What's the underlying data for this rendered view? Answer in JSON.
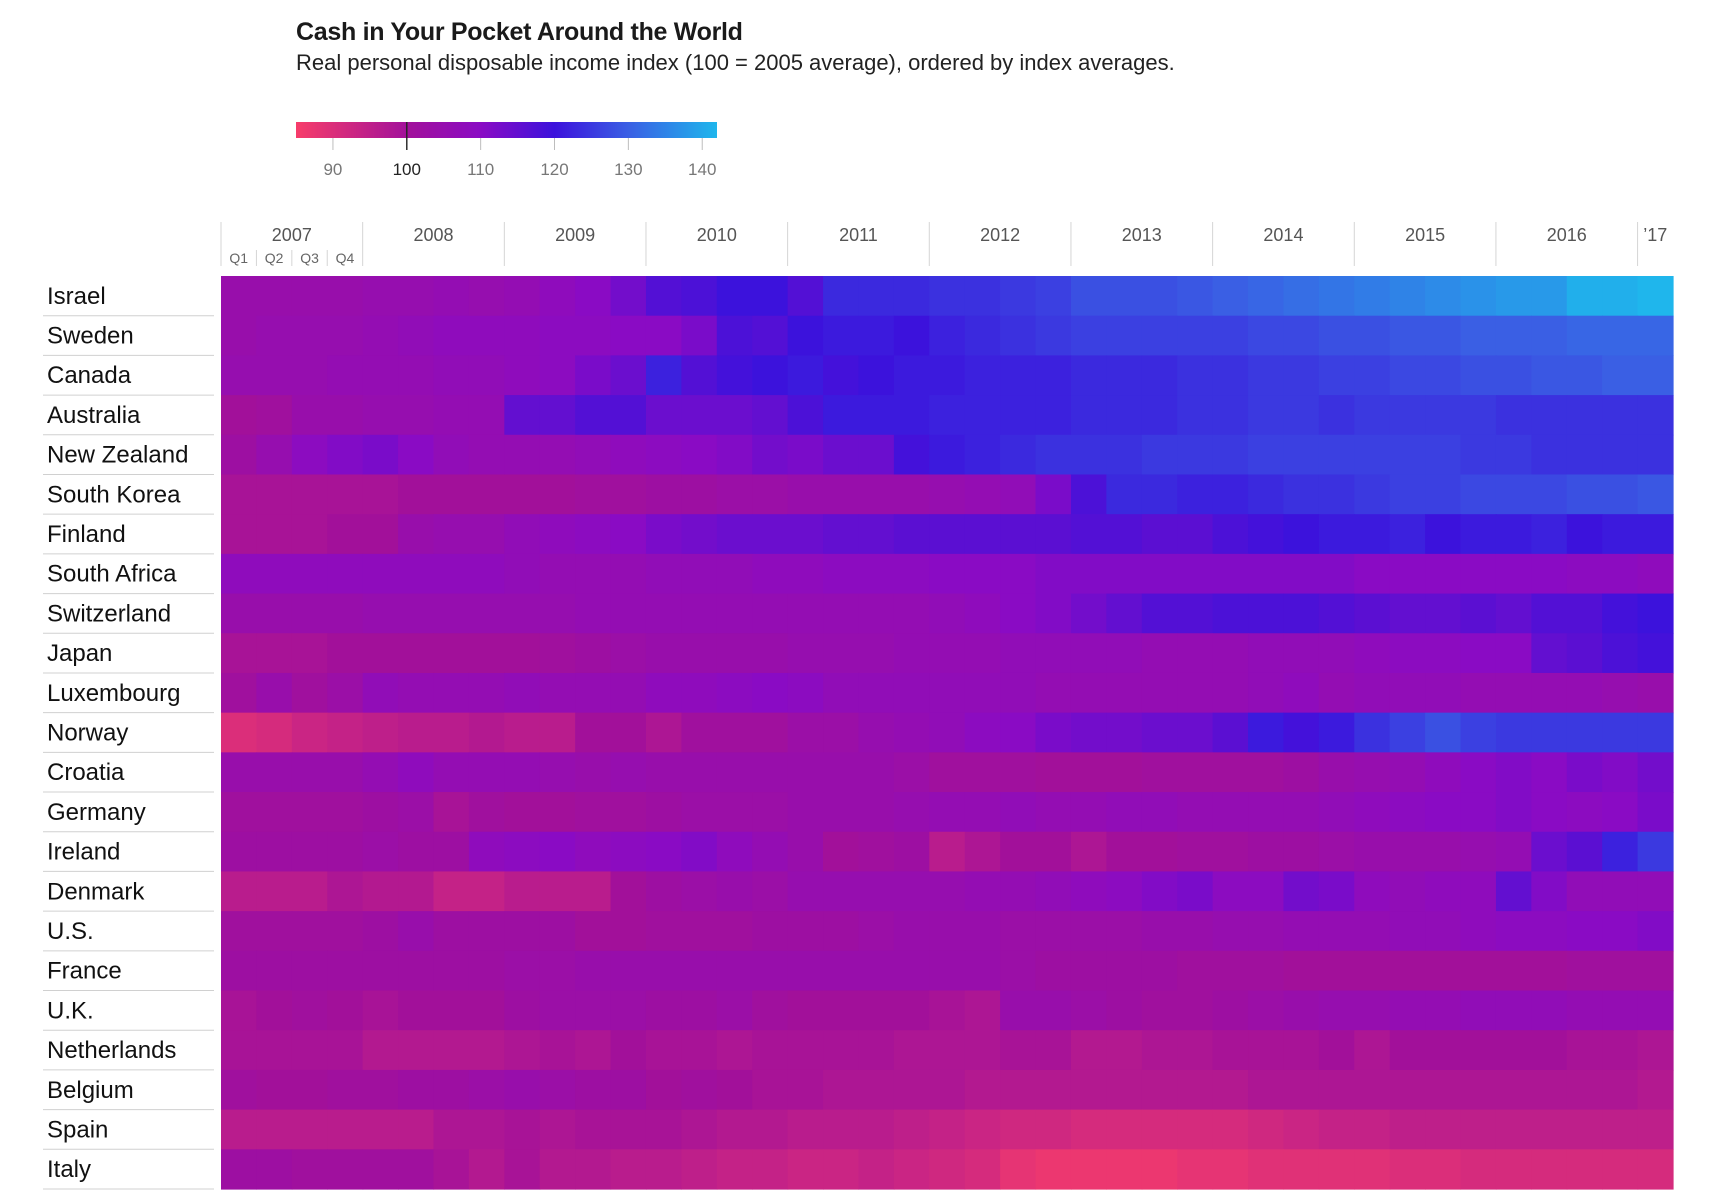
{
  "chart_data": {
    "type": "heatmap",
    "title": "Cash in Your Pocket Around the World",
    "subtitle": "Real personal disposable income index (100 = 2005 average), ordered by index averages.",
    "color_scale": {
      "domain": [
        85,
        100,
        110,
        120,
        130,
        142
      ],
      "colors": [
        "#f73d6a",
        "#a2109a",
        "#8a0bc4",
        "#3c12dc",
        "#3a5fe4",
        "#1fb6ec"
      ],
      "ticks": [
        90,
        100,
        110,
        120,
        130,
        140
      ],
      "ticks_labels": [
        "90",
        "100",
        "110",
        "120",
        "130",
        "140"
      ],
      "highlighted_tick": 100
    },
    "x_axis": {
      "years": [
        "2007",
        "2008",
        "2009",
        "2010",
        "2011",
        "2012",
        "2013",
        "2014",
        "2015",
        "2016",
        "’17"
      ],
      "quarters": [
        "Q1",
        "Q2",
        "Q3",
        "Q4"
      ],
      "num_columns": 41,
      "first_period": "2007 Q1",
      "last_period": "2017 Q1"
    },
    "rows": [
      {
        "name": "Israel",
        "values": [
          104,
          104,
          104,
          104,
          105,
          105,
          106,
          105,
          106,
          108,
          110,
          113,
          117,
          118,
          120,
          120,
          117,
          123,
          123,
          123,
          124,
          124,
          125,
          126,
          128,
          128,
          128,
          129,
          130,
          131,
          132,
          133,
          134,
          135,
          136,
          137,
          138,
          138,
          141,
          141,
          142
        ]
      },
      {
        "name": "Sweden",
        "values": [
          104,
          105,
          105,
          105,
          106,
          107,
          108,
          108,
          108,
          109,
          109,
          110,
          110,
          112,
          118,
          117,
          120,
          121,
          121,
          120,
          122,
          123,
          124,
          125,
          126,
          126,
          126,
          126,
          126,
          127,
          127,
          128,
          128,
          129,
          129,
          130,
          130,
          130,
          131,
          131,
          131
        ]
      },
      {
        "name": "Canada",
        "values": [
          105,
          105,
          105,
          106,
          106,
          106,
          107,
          107,
          108,
          109,
          112,
          114,
          122,
          117,
          119,
          120,
          121,
          119,
          120,
          121,
          121,
          122,
          122,
          122,
          123,
          123,
          123,
          124,
          124,
          125,
          125,
          126,
          126,
          127,
          127,
          128,
          128,
          129,
          129,
          130,
          130
        ]
      },
      {
        "name": "Australia",
        "values": [
          100,
          101,
          104,
          104,
          105,
          105,
          106,
          106,
          115,
          115,
          117,
          117,
          114,
          114,
          114,
          115,
          118,
          121,
          121,
          121,
          122,
          122,
          122,
          122,
          123,
          123,
          123,
          124,
          124,
          125,
          125,
          124,
          125,
          125,
          125,
          125,
          124,
          124,
          124,
          124,
          124
        ]
      },
      {
        "name": "New Zealand",
        "values": [
          102,
          105,
          109,
          111,
          112,
          110,
          107,
          106,
          106,
          106,
          107,
          108,
          109,
          110,
          111,
          113,
          112,
          114,
          114,
          119,
          121,
          122,
          123,
          124,
          124,
          124,
          125,
          125,
          125,
          126,
          126,
          126,
          126,
          126,
          126,
          125,
          125,
          124,
          124,
          124,
          124
        ]
      },
      {
        "name": "South Korea",
        "values": [
          99,
          99,
          99,
          99,
          99,
          100,
          100,
          100,
          100,
          100,
          101,
          101,
          102,
          102,
          103,
          103,
          104,
          104,
          104,
          104,
          105,
          106,
          107,
          112,
          118,
          123,
          123,
          122,
          122,
          123,
          124,
          124,
          125,
          126,
          126,
          127,
          127,
          127,
          128,
          128,
          129
        ]
      },
      {
        "name": "Finland",
        "values": [
          99,
          99,
          99,
          100,
          100,
          104,
          105,
          105,
          107,
          108,
          109,
          110,
          112,
          113,
          114,
          114,
          114,
          115,
          115,
          116,
          116,
          116,
          116,
          116,
          117,
          117,
          116,
          116,
          118,
          119,
          120,
          121,
          121,
          122,
          120,
          121,
          121,
          122,
          120,
          121,
          121
        ]
      },
      {
        "name": "South Africa",
        "values": [
          108,
          108,
          108,
          108,
          108,
          108,
          108,
          108,
          107,
          106,
          106,
          106,
          107,
          107,
          107,
          108,
          108,
          109,
          109,
          109,
          110,
          110,
          110,
          111,
          111,
          111,
          111,
          111,
          111,
          111,
          111,
          111,
          110,
          110,
          110,
          110,
          110,
          110,
          109,
          109,
          108
        ]
      },
      {
        "name": "Switzerland",
        "values": [
          104,
          104,
          104,
          104,
          105,
          105,
          105,
          105,
          105,
          105,
          106,
          106,
          106,
          106,
          106,
          106,
          106,
          106,
          106,
          106,
          107,
          108,
          110,
          111,
          113,
          115,
          117,
          117,
          118,
          118,
          118,
          117,
          116,
          115,
          115,
          116,
          115,
          117,
          117,
          119,
          120
        ]
      },
      {
        "name": "Japan",
        "values": [
          99,
          99,
          99,
          100,
          100,
          100,
          100,
          100,
          100,
          101,
          102,
          103,
          104,
          104,
          104,
          104,
          105,
          105,
          105,
          106,
          106,
          106,
          107,
          107,
          107,
          107,
          106,
          106,
          106,
          107,
          107,
          107,
          108,
          109,
          109,
          110,
          110,
          115,
          116,
          118,
          119
        ]
      },
      {
        "name": "Luxembourg",
        "values": [
          101,
          104,
          101,
          103,
          107,
          106,
          106,
          106,
          107,
          106,
          106,
          106,
          108,
          108,
          109,
          110,
          109,
          107,
          107,
          107,
          107,
          107,
          107,
          106,
          106,
          106,
          106,
          106,
          106,
          107,
          108,
          106,
          107,
          107,
          107,
          106,
          106,
          106,
          106,
          105,
          104
        ]
      },
      {
        "name": "Norway",
        "values": [
          90,
          91,
          93,
          94,
          95,
          96,
          96,
          97,
          96,
          96,
          100,
          100,
          98,
          101,
          101,
          101,
          103,
          103,
          105,
          106,
          107,
          109,
          110,
          112,
          113,
          113,
          114,
          114,
          116,
          121,
          119,
          121,
          124,
          126,
          128,
          126,
          125,
          125,
          125,
          125,
          125
        ]
      },
      {
        "name": "Croatia",
        "values": [
          104,
          104,
          104,
          104,
          106,
          108,
          106,
          106,
          106,
          105,
          104,
          105,
          104,
          104,
          104,
          104,
          104,
          104,
          104,
          103,
          101,
          101,
          101,
          100,
          100,
          100,
          101,
          101,
          101,
          101,
          102,
          104,
          105,
          106,
          108,
          110,
          111,
          110,
          112,
          111,
          113
        ]
      },
      {
        "name": "Germany",
        "values": [
          101,
          101,
          101,
          101,
          102,
          103,
          99,
          101,
          100,
          100,
          101,
          101,
          102,
          103,
          103,
          103,
          104,
          104,
          104,
          105,
          106,
          106,
          107,
          106,
          106,
          107,
          107,
          106,
          106,
          106,
          106,
          107,
          108,
          109,
          110,
          110,
          111,
          110,
          109,
          110,
          112
        ]
      },
      {
        "name": "Ireland",
        "values": [
          102,
          102,
          102,
          102,
          103,
          102,
          102,
          108,
          109,
          110,
          108,
          109,
          110,
          111,
          108,
          106,
          104,
          100,
          101,
          102,
          96,
          98,
          100,
          100,
          98,
          100,
          100,
          101,
          101,
          102,
          102,
          103,
          104,
          104,
          104,
          105,
          106,
          114,
          116,
          122,
          125
        ]
      },
      {
        "name": "Denmark",
        "values": [
          96,
          96,
          96,
          98,
          97,
          97,
          94,
          94,
          96,
          96,
          96,
          100,
          102,
          103,
          104,
          103,
          105,
          105,
          105,
          105,
          105,
          106,
          106,
          107,
          108,
          109,
          111,
          112,
          109,
          109,
          113,
          112,
          108,
          107,
          108,
          108,
          115,
          111,
          107,
          107,
          107
        ]
      },
      {
        "name": "U.S.",
        "values": [
          101,
          101,
          101,
          101,
          102,
          104,
          102,
          102,
          102,
          102,
          100,
          100,
          101,
          101,
          101,
          102,
          102,
          102,
          103,
          104,
          104,
          104,
          103,
          103,
          103,
          103,
          104,
          104,
          105,
          105,
          106,
          106,
          106,
          107,
          107,
          108,
          109,
          109,
          110,
          110,
          111
        ]
      },
      {
        "name": "France",
        "values": [
          102,
          102,
          102,
          102,
          102,
          102,
          102,
          102,
          103,
          103,
          104,
          104,
          104,
          104,
          104,
          104,
          104,
          104,
          104,
          104,
          104,
          104,
          103,
          102,
          102,
          102,
          102,
          101,
          101,
          101,
          100,
          100,
          100,
          100,
          100,
          100,
          100,
          100,
          101,
          101,
          101
        ]
      },
      {
        "name": "U.K.",
        "values": [
          99,
          100,
          101,
          100,
          99,
          100,
          100,
          100,
          102,
          103,
          103,
          103,
          102,
          102,
          103,
          101,
          100,
          100,
          100,
          100,
          99,
          98,
          104,
          104,
          103,
          102,
          101,
          101,
          102,
          103,
          104,
          105,
          105,
          106,
          106,
          107,
          107,
          107,
          106,
          106,
          106
        ]
      },
      {
        "name": "Netherlands",
        "values": [
          99,
          99,
          99,
          99,
          97,
          97,
          97,
          97,
          98,
          99,
          98,
          100,
          99,
          99,
          98,
          99,
          99,
          99,
          99,
          98,
          98,
          98,
          99,
          99,
          97,
          97,
          98,
          98,
          99,
          99,
          99,
          100,
          98,
          100,
          100,
          100,
          100,
          100,
          99,
          99,
          98
        ]
      },
      {
        "name": "Belgium",
        "values": [
          101,
          100,
          100,
          101,
          101,
          102,
          102,
          103,
          104,
          103,
          102,
          102,
          100,
          101,
          100,
          99,
          99,
          98,
          98,
          98,
          98,
          97,
          97,
          97,
          97,
          97,
          97,
          97,
          97,
          98,
          98,
          98,
          98,
          98,
          98,
          98,
          98,
          98,
          98,
          98,
          97
        ]
      },
      {
        "name": "Spain",
        "values": [
          96,
          96,
          96,
          96,
          96,
          96,
          98,
          98,
          99,
          98,
          99,
          99,
          99,
          98,
          97,
          97,
          96,
          96,
          96,
          95,
          94,
          93,
          92,
          92,
          91,
          91,
          91,
          91,
          91,
          92,
          93,
          94,
          94,
          95,
          95,
          95,
          95,
          95,
          95,
          95,
          95
        ]
      },
      {
        "name": "Italy",
        "values": [
          102,
          102,
          101,
          101,
          101,
          101,
          99,
          97,
          99,
          97,
          97,
          96,
          96,
          95,
          94,
          94,
          93,
          93,
          94,
          93,
          92,
          91,
          88,
          87,
          87,
          87,
          87,
          88,
          88,
          89,
          89,
          89,
          89,
          90,
          90,
          91,
          91,
          91,
          91,
          91,
          91
        ]
      }
    ]
  }
}
